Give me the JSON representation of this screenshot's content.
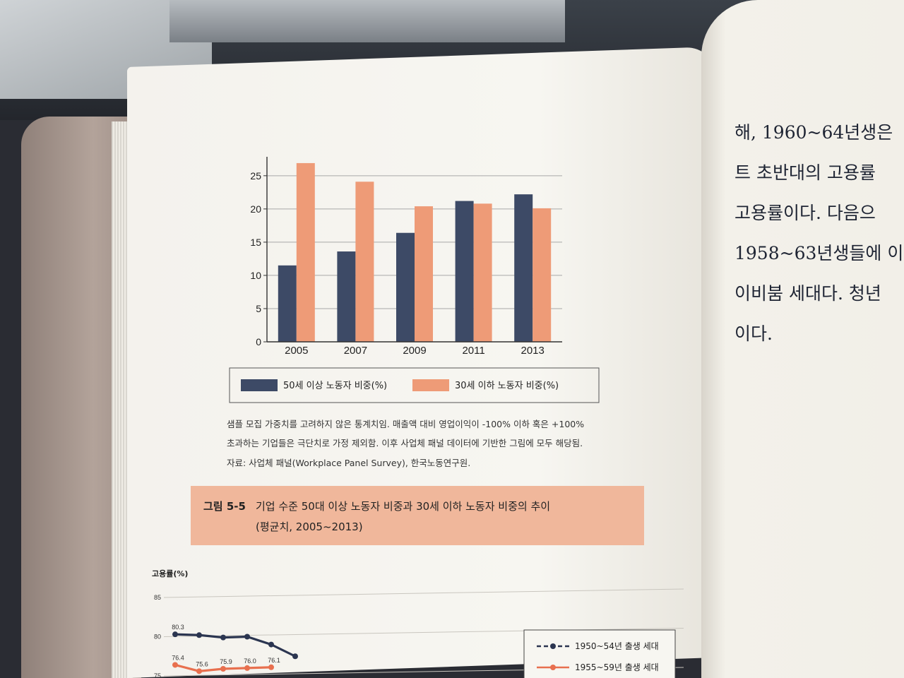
{
  "chart_data": [
    {
      "type": "bar",
      "categories": [
        "2005",
        "2007",
        "2009",
        "2011",
        "2013"
      ],
      "series": [
        {
          "name": "50세 이상 노동자 비중(%)",
          "color": "#3d4a66",
          "values": [
            11.5,
            13.6,
            16.4,
            21.2,
            22.2
          ]
        },
        {
          "name": "30세 이하 노동자 비중(%)",
          "color": "#ee9b77",
          "values": [
            26.9,
            24.1,
            20.4,
            20.8,
            20.1
          ]
        }
      ],
      "yticks": [
        "0",
        "5",
        "10",
        "15",
        "20",
        "25"
      ],
      "ylim": [
        0,
        27
      ],
      "grid": true,
      "legend_position": "bottom"
    },
    {
      "type": "line",
      "ylabel": "고용률(%)",
      "yticks": [
        "75",
        "80",
        "85"
      ],
      "ylim": [
        75,
        85
      ],
      "grid": true,
      "legend_position": "right",
      "series": [
        {
          "name": "1950~54년 출생 세대",
          "color": "#2b3550",
          "values": [
            80.3,
            80.2,
            79.9,
            80.0,
            79.0,
            77.5
          ],
          "labels": [
            "80.3"
          ]
        },
        {
          "name": "1955~59년 출생 세대",
          "color": "#e8704f",
          "values": [
            76.4,
            75.6,
            75.9,
            76.0,
            76.1
          ],
          "labels": [
            "76.4",
            "75.6",
            "75.9",
            "76.0",
            "76.1"
          ]
        }
      ]
    }
  ],
  "notes": {
    "line1": "샘플 모집 가중치를 고려하지 않은 통계치임. 매출액 대비 영업이익이 -100% 이하 혹은 +100%",
    "line2": "초과하는 기업들은 극단치로 가정 제외함. 이후 사업체 패널 데이터에 기반한 그림에 모두 해당됨.",
    "line3": "자료: 사업체 패널(Workplace Panel Survey), 한국노동연구원."
  },
  "caption": {
    "number": "그림 5-5",
    "line1": "기업 수준 50대 이상 노동자 비중과 30세 이하 노동자 비중의 추이",
    "line2": "(평균치, 2005~2013)"
  },
  "right_page": {
    "lines": [
      "해, 1960~64년생은",
      "트 초반대의 고용률",
      "고용률이다. 다음으",
      "1958~63년생들에 이",
      "이비붐 세대다. 청년",
      "이다."
    ]
  }
}
